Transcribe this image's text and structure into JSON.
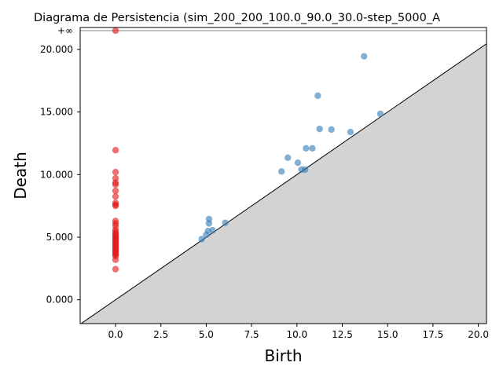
{
  "chart_data": {
    "type": "scatter",
    "title": "Diagrama de Persistencia (sim_200_200_100.0_90.0_30.0-step_5000_A",
    "xlabel": "Birth",
    "ylabel": "Death",
    "xlim": [
      -1.95,
      20.45
    ],
    "ylim": [
      -1.9,
      21.75
    ],
    "inf_label": "+∞",
    "inf_value": 21.5,
    "grid": false,
    "diagonal": true,
    "x_ticks": [
      {
        "value": 0.0,
        "label": "0.0"
      },
      {
        "value": 2.5,
        "label": "2.5"
      },
      {
        "value": 5.0,
        "label": "5.0"
      },
      {
        "value": 7.5,
        "label": "7.5"
      },
      {
        "value": 10.0,
        "label": "10.0"
      },
      {
        "value": 12.5,
        "label": "12.5"
      },
      {
        "value": 15.0,
        "label": "15.0"
      },
      {
        "value": 17.5,
        "label": "17.5"
      },
      {
        "value": 20.0,
        "label": "20.0"
      }
    ],
    "y_ticks": [
      {
        "value": 0.0,
        "label": "0.000"
      },
      {
        "value": 5.0,
        "label": "5.000"
      },
      {
        "value": 10.0,
        "label": "10.000"
      },
      {
        "value": 15.0,
        "label": "15.000"
      },
      {
        "value": 20.0,
        "label": "20.000"
      }
    ],
    "colors": {
      "h0": "#e41a1c",
      "h1": "#377eb8",
      "diagonal_fill": "#d3d3d3",
      "inf_line": "#808080"
    },
    "series": [
      {
        "color_key": "h0",
        "points": [
          [
            0,
            21.5
          ],
          [
            0,
            11.95
          ],
          [
            0,
            10.2
          ],
          [
            0,
            9.7
          ],
          [
            0,
            9.35
          ],
          [
            0,
            9.2
          ],
          [
            0,
            8.7
          ],
          [
            0,
            8.25
          ],
          [
            0,
            7.75
          ],
          [
            0,
            7.6
          ],
          [
            0,
            7.5
          ],
          [
            0,
            6.3
          ],
          [
            0,
            6.1
          ],
          [
            0,
            5.9
          ],
          [
            0,
            5.6
          ],
          [
            0,
            5.45
          ],
          [
            0,
            5.3
          ],
          [
            0,
            5.2
          ],
          [
            0,
            5.1
          ],
          [
            0,
            5.0
          ],
          [
            0,
            4.9
          ],
          [
            0,
            4.8
          ],
          [
            0,
            4.7
          ],
          [
            0,
            4.6
          ],
          [
            0,
            4.5
          ],
          [
            0,
            4.4
          ],
          [
            0,
            4.3
          ],
          [
            0,
            4.2
          ],
          [
            0,
            4.1
          ],
          [
            0,
            4.0
          ],
          [
            0,
            3.9
          ],
          [
            0,
            3.8
          ],
          [
            0,
            3.7
          ],
          [
            0,
            3.6
          ],
          [
            0,
            3.5
          ],
          [
            0,
            3.2
          ],
          [
            0,
            2.45
          ]
        ]
      },
      {
        "color_key": "h1",
        "points": [
          [
            13.7,
            19.45
          ],
          [
            11.15,
            16.3
          ],
          [
            14.6,
            14.85
          ],
          [
            11.25,
            13.65
          ],
          [
            11.9,
            13.6
          ],
          [
            12.95,
            13.4
          ],
          [
            10.5,
            12.1
          ],
          [
            10.85,
            12.1
          ],
          [
            9.5,
            11.35
          ],
          [
            10.05,
            10.95
          ],
          [
            9.15,
            10.25
          ],
          [
            10.25,
            10.4
          ],
          [
            10.45,
            10.4
          ],
          [
            5.15,
            6.45
          ],
          [
            5.15,
            6.1
          ],
          [
            6.05,
            6.15
          ],
          [
            5.35,
            5.55
          ],
          [
            5.1,
            5.5
          ],
          [
            5.0,
            5.2
          ],
          [
            4.75,
            4.85
          ]
        ]
      }
    ]
  }
}
